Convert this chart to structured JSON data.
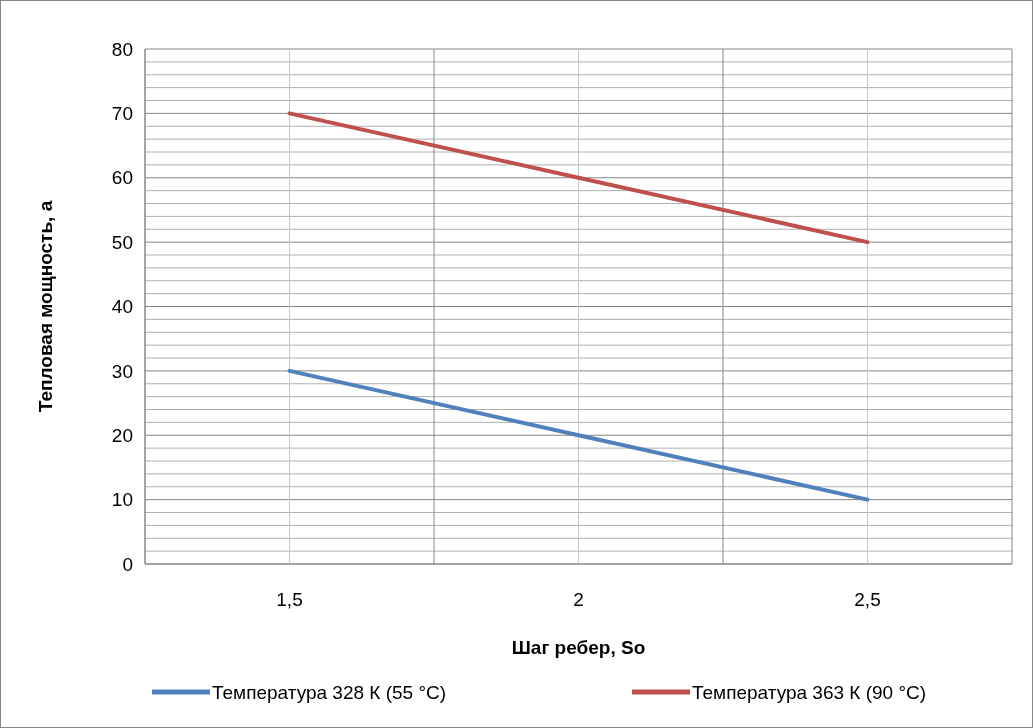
{
  "chart_data": {
    "type": "line",
    "xlabel": "Шаг   ребер, So",
    "ylabel": "Тепловая мощность, а",
    "categories": [
      "1,5",
      "2",
      "2,5"
    ],
    "series": [
      {
        "name": "Температура 328 К (55 °С)",
        "color": "#4f81bd",
        "values": [
          30,
          20,
          10
        ]
      },
      {
        "name": "Температура 363 К (90 °С)",
        "color": "#c0504d",
        "values": [
          70,
          60,
          50
        ]
      }
    ],
    "ylim": [
      0,
      80
    ],
    "yticks": [
      0,
      {
        "value": 2,
        "label": null
      },
      {
        "value": 4,
        "label": null
      },
      {
        "value": 6,
        "label": null
      },
      {
        "value": 8,
        "label": null
      },
      10,
      {
        "value": 12,
        "label": null
      },
      {
        "value": 14,
        "label": null
      },
      {
        "value": 16,
        "label": null
      },
      {
        "value": 18,
        "label": null
      },
      20,
      {
        "value": 22,
        "label": null
      },
      {
        "value": 24,
        "label": null
      },
      {
        "value": 26,
        "label": null
      },
      {
        "value": 28,
        "label": null
      },
      30,
      {
        "value": 32,
        "label": null
      },
      {
        "value": 34,
        "label": null
      },
      {
        "value": 36,
        "label": null
      },
      {
        "value": 38,
        "label": null
      },
      40,
      {
        "value": 42,
        "label": null
      },
      {
        "value": 44,
        "label": null
      },
      {
        "value": 46,
        "label": null
      },
      {
        "value": 48,
        "label": null
      },
      50,
      {
        "value": 52,
        "label": null
      },
      {
        "value": 54,
        "label": null
      },
      {
        "value": 56,
        "label": null
      },
      {
        "value": 58,
        "label": null
      },
      60,
      {
        "value": 62,
        "label": null
      },
      {
        "value": 64,
        "label": null
      },
      {
        "value": 66,
        "label": null
      },
      {
        "value": 68,
        "label": null
      },
      70,
      {
        "value": 72,
        "label": null
      },
      {
        "value": 74,
        "label": null
      },
      {
        "value": 76,
        "label": null
      },
      {
        "value": 78,
        "label": null
      },
      80
    ],
    "grid": true,
    "legend": "bottom",
    "marker": "none",
    "line_style": "solid"
  }
}
